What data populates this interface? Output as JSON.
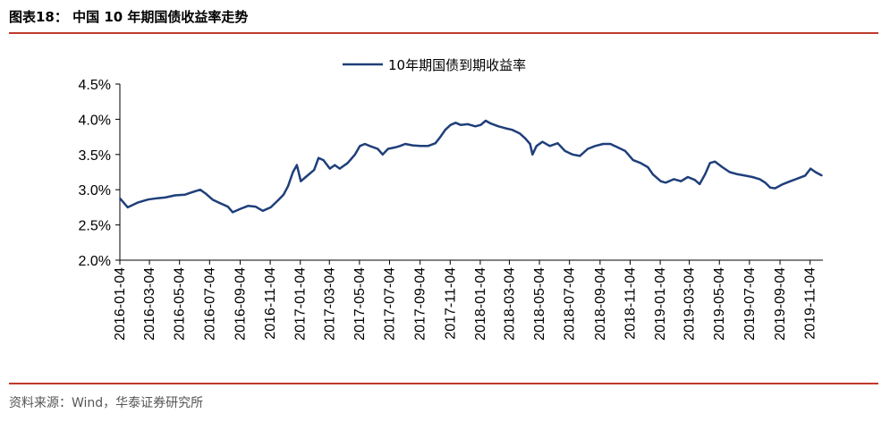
{
  "header": {
    "figure_label": "图表18：",
    "figure_title": "中国 10 年期国债收益率走势"
  },
  "footer": {
    "source": "资料来源：Wind，华泰证券研究所"
  },
  "colors": {
    "accent_rule": "#C0392B",
    "series_line": "#1F3F7A"
  },
  "chart_data": {
    "type": "line",
    "title": "",
    "xlabel": "",
    "ylabel": "",
    "ylim": [
      0.02,
      0.045
    ],
    "yticks": [
      "2.0%",
      "2.5%",
      "3.0%",
      "3.5%",
      "4.0%",
      "4.5%"
    ],
    "xlim": [
      "2016-01-04",
      "2019-11-30"
    ],
    "xticks": [
      "2016-01-04",
      "2016-03-04",
      "2016-05-04",
      "2016-07-04",
      "2016-09-04",
      "2016-11-04",
      "2017-01-04",
      "2017-03-04",
      "2017-05-04",
      "2017-07-04",
      "2017-09-04",
      "2017-11-04",
      "2018-01-04",
      "2018-03-04",
      "2018-05-04",
      "2018-07-04",
      "2018-09-04",
      "2018-11-04",
      "2019-01-04",
      "2019-03-04",
      "2019-05-04",
      "2019-07-04",
      "2019-09-04",
      "2019-11-04"
    ],
    "grid": false,
    "legend_position": "top-center",
    "series": [
      {
        "name": "10年期国债到期收益率",
        "points": [
          [
            "2016-01-04",
            0.0288
          ],
          [
            "2016-01-20",
            0.0275
          ],
          [
            "2016-02-10",
            0.0282
          ],
          [
            "2016-03-01",
            0.0286
          ],
          [
            "2016-03-20",
            0.0288
          ],
          [
            "2016-04-05",
            0.0289
          ],
          [
            "2016-04-25",
            0.0292
          ],
          [
            "2016-05-15",
            0.0293
          ],
          [
            "2016-06-01",
            0.0297
          ],
          [
            "2016-06-15",
            0.03
          ],
          [
            "2016-06-25",
            0.0295
          ],
          [
            "2016-07-10",
            0.0286
          ],
          [
            "2016-07-25",
            0.0281
          ],
          [
            "2016-08-10",
            0.0276
          ],
          [
            "2016-08-20",
            0.0268
          ],
          [
            "2016-09-05",
            0.0273
          ],
          [
            "2016-09-20",
            0.0277
          ],
          [
            "2016-10-05",
            0.0276
          ],
          [
            "2016-10-20",
            0.027
          ],
          [
            "2016-11-05",
            0.0275
          ],
          [
            "2016-11-20",
            0.0285
          ],
          [
            "2016-12-01",
            0.0293
          ],
          [
            "2016-12-10",
            0.0305
          ],
          [
            "2016-12-20",
            0.0325
          ],
          [
            "2016-12-28",
            0.0335
          ],
          [
            "2017-01-05",
            0.0312
          ],
          [
            "2017-01-15",
            0.0318
          ],
          [
            "2017-02-01",
            0.0328
          ],
          [
            "2017-02-10",
            0.0345
          ],
          [
            "2017-02-20",
            0.0342
          ],
          [
            "2017-03-05",
            0.033
          ],
          [
            "2017-03-15",
            0.0335
          ],
          [
            "2017-03-25",
            0.033
          ],
          [
            "2017-04-10",
            0.0338
          ],
          [
            "2017-04-25",
            0.035
          ],
          [
            "2017-05-05",
            0.0362
          ],
          [
            "2017-05-15",
            0.0365
          ],
          [
            "2017-05-25",
            0.0362
          ],
          [
            "2017-06-10",
            0.0358
          ],
          [
            "2017-06-20",
            0.035
          ],
          [
            "2017-07-01",
            0.0358
          ],
          [
            "2017-07-15",
            0.036
          ],
          [
            "2017-07-25",
            0.0362
          ],
          [
            "2017-08-05",
            0.0365
          ],
          [
            "2017-08-20",
            0.0363
          ],
          [
            "2017-09-05",
            0.0362
          ],
          [
            "2017-09-20",
            0.0362
          ],
          [
            "2017-10-05",
            0.0366
          ],
          [
            "2017-10-15",
            0.0375
          ],
          [
            "2017-10-25",
            0.0385
          ],
          [
            "2017-11-05",
            0.0392
          ],
          [
            "2017-11-15",
            0.0395
          ],
          [
            "2017-11-25",
            0.0392
          ],
          [
            "2017-12-10",
            0.0393
          ],
          [
            "2017-12-25",
            0.039
          ],
          [
            "2018-01-05",
            0.0392
          ],
          [
            "2018-01-15",
            0.0398
          ],
          [
            "2018-01-25",
            0.0394
          ],
          [
            "2018-02-10",
            0.039
          ],
          [
            "2018-02-25",
            0.0387
          ],
          [
            "2018-03-10",
            0.0385
          ],
          [
            "2018-03-25",
            0.038
          ],
          [
            "2018-04-05",
            0.0373
          ],
          [
            "2018-04-15",
            0.0365
          ],
          [
            "2018-04-20",
            0.035
          ],
          [
            "2018-04-28",
            0.0362
          ],
          [
            "2018-05-10",
            0.0368
          ],
          [
            "2018-05-25",
            0.0362
          ],
          [
            "2018-06-10",
            0.0366
          ],
          [
            "2018-06-25",
            0.0355
          ],
          [
            "2018-07-10",
            0.035
          ],
          [
            "2018-07-25",
            0.0348
          ],
          [
            "2018-08-10",
            0.0358
          ],
          [
            "2018-08-25",
            0.0362
          ],
          [
            "2018-09-10",
            0.0365
          ],
          [
            "2018-09-25",
            0.0365
          ],
          [
            "2018-10-10",
            0.036
          ],
          [
            "2018-10-25",
            0.0355
          ],
          [
            "2018-11-10",
            0.0342
          ],
          [
            "2018-11-25",
            0.0338
          ],
          [
            "2018-12-10",
            0.0332
          ],
          [
            "2018-12-20",
            0.0322
          ],
          [
            "2019-01-05",
            0.0312
          ],
          [
            "2019-01-15",
            0.031
          ],
          [
            "2019-02-01",
            0.0315
          ],
          [
            "2019-02-15",
            0.0312
          ],
          [
            "2019-03-01",
            0.0318
          ],
          [
            "2019-03-15",
            0.0314
          ],
          [
            "2019-03-25",
            0.0308
          ],
          [
            "2019-04-05",
            0.0322
          ],
          [
            "2019-04-15",
            0.0338
          ],
          [
            "2019-04-25",
            0.034
          ],
          [
            "2019-05-10",
            0.0332
          ],
          [
            "2019-05-25",
            0.0325
          ],
          [
            "2019-06-10",
            0.0322
          ],
          [
            "2019-06-25",
            0.032
          ],
          [
            "2019-07-10",
            0.0318
          ],
          [
            "2019-07-25",
            0.0315
          ],
          [
            "2019-08-05",
            0.031
          ],
          [
            "2019-08-15",
            0.0303
          ],
          [
            "2019-08-25",
            0.0302
          ],
          [
            "2019-09-10",
            0.0308
          ],
          [
            "2019-09-25",
            0.0312
          ],
          [
            "2019-10-10",
            0.0316
          ],
          [
            "2019-10-25",
            0.032
          ],
          [
            "2019-11-05",
            0.033
          ],
          [
            "2019-11-15",
            0.0325
          ],
          [
            "2019-11-28",
            0.032
          ]
        ]
      }
    ]
  }
}
